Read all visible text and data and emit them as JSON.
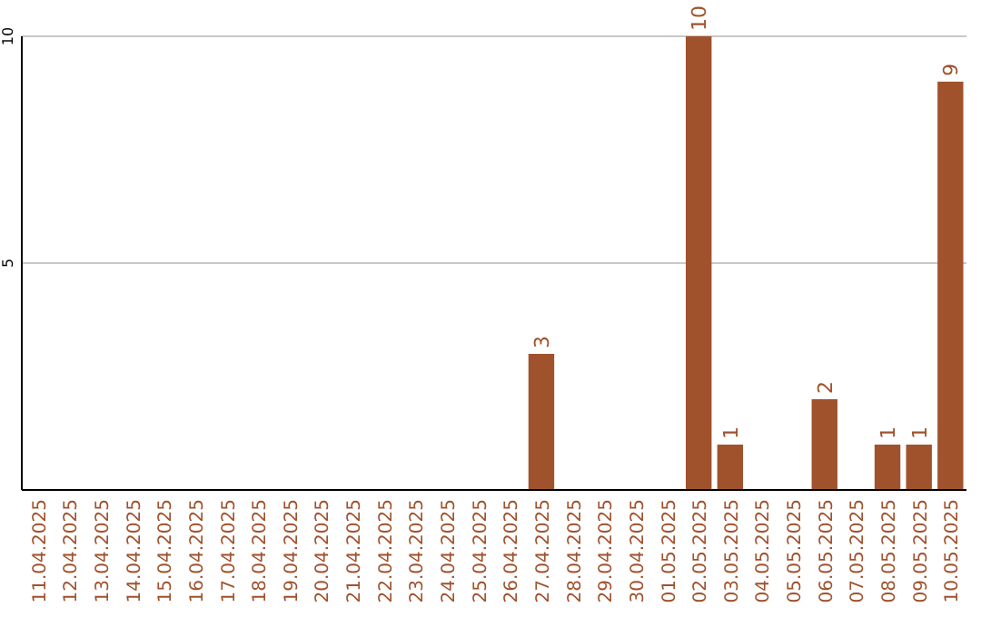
{
  "chart_data": {
    "type": "bar",
    "categories": [
      "11.04.2025",
      "12.04.2025",
      "13.04.2025",
      "14.04.2025",
      "15.04.2025",
      "16.04.2025",
      "17.04.2025",
      "18.04.2025",
      "19.04.2025",
      "20.04.2025",
      "21.04.2025",
      "22.04.2025",
      "23.04.2025",
      "24.04.2025",
      "25.04.2025",
      "26.04.2025",
      "27.04.2025",
      "28.04.2025",
      "29.04.2025",
      "30.04.2025",
      "01.05.2025",
      "02.05.2025",
      "03.05.2025",
      "04.05.2025",
      "05.05.2025",
      "06.05.2025",
      "07.05.2025",
      "08.05.2025",
      "09.05.2025",
      "10.05.2025"
    ],
    "values": [
      0,
      0,
      0,
      0,
      0,
      0,
      0,
      0,
      0,
      0,
      0,
      0,
      0,
      0,
      0,
      0,
      3,
      0,
      0,
      0,
      0,
      10,
      1,
      0,
      0,
      2,
      0,
      1,
      1,
      9
    ],
    "value_labels": [
      null,
      null,
      null,
      null,
      null,
      null,
      null,
      null,
      null,
      null,
      null,
      null,
      null,
      null,
      null,
      null,
      "3",
      null,
      null,
      null,
      null,
      "10",
      "1",
      null,
      null,
      "2",
      null,
      "1",
      "1",
      "9"
    ],
    "color": "#a0522d",
    "ylim": [
      0,
      10
    ],
    "yticks": [
      5,
      10
    ],
    "grid": "y"
  }
}
